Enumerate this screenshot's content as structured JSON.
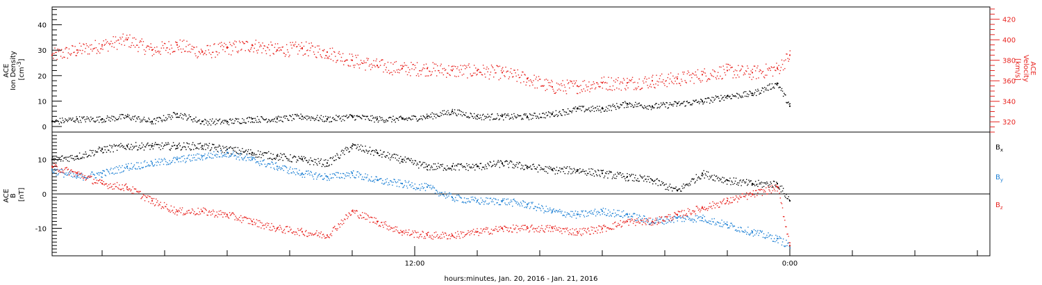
{
  "colors": {
    "black": "#000000",
    "red": "#e8231f",
    "blue": "#1b7fd4"
  },
  "xaxis": {
    "label": "hours:minutes, Jan. 20, 2016 - Jan. 21, 2016",
    "range_hours": [
      0,
      37.5
    ],
    "tick_labels": [
      {
        "hour": 14.5,
        "label": "12:00"
      },
      {
        "hour": 29.5,
        "label": "0:00"
      }
    ],
    "minor_tick_hours": [
      0,
      2,
      4.5,
      7,
      9.5,
      12,
      17,
      19.5,
      22,
      24.5,
      27,
      32,
      34.5,
      37
    ]
  },
  "chart_data": [
    {
      "type": "scatter",
      "panel": "top",
      "ylabel": "ACE\nIon Density\n[cm^-3]",
      "ylim": [
        0,
        47
      ],
      "yticks": [
        0,
        10,
        20,
        30,
        40
      ],
      "y2label": "ACE\nVelocity\n[km/s]",
      "y2lim": [
        310,
        432
      ],
      "y2ticks": [
        320,
        340,
        360,
        380,
        400,
        420
      ],
      "series": [
        {
          "name": "Ion Density",
          "color": "#000000",
          "axis": "left",
          "x": [
            0,
            1,
            2,
            3,
            4,
            5,
            6,
            7,
            8,
            9,
            10,
            11,
            12,
            13,
            14,
            15,
            16,
            17,
            18,
            19,
            20,
            21,
            22,
            23,
            24,
            25,
            26,
            27,
            28,
            29,
            29.5
          ],
          "y": [
            2,
            3,
            3,
            4,
            2,
            5,
            2,
            2,
            3,
            3,
            4,
            3,
            4,
            3,
            3,
            4,
            6,
            4,
            4,
            4,
            5,
            7,
            7,
            9,
            8,
            9,
            10,
            12,
            13,
            17,
            8
          ]
        },
        {
          "name": "Velocity",
          "color": "#e8231f",
          "axis": "right",
          "x": [
            0,
            1,
            2,
            3,
            4,
            5,
            6,
            7,
            8,
            9,
            10,
            11,
            12,
            13,
            14,
            15,
            16,
            17,
            18,
            19,
            20,
            21,
            22,
            23,
            24,
            25,
            26,
            27,
            28,
            29,
            29.5
          ],
          "y": [
            385,
            390,
            395,
            400,
            390,
            395,
            388,
            392,
            395,
            390,
            392,
            388,
            380,
            375,
            372,
            372,
            370,
            370,
            368,
            362,
            354,
            355,
            358,
            358,
            360,
            362,
            366,
            370,
            368,
            372,
            385
          ]
        }
      ]
    },
    {
      "type": "scatter",
      "panel": "bottom",
      "ylabel": "ACE\nB\n[nT]",
      "ylim": [
        -18,
        18
      ],
      "yticks": [
        -10,
        0,
        10
      ],
      "series": [
        {
          "name": "Bx",
          "color": "#000000",
          "x": [
            0,
            1,
            2,
            3,
            4,
            5,
            6,
            7,
            8,
            9,
            10,
            11,
            12,
            13,
            14,
            15,
            16,
            17,
            18,
            19,
            20,
            21,
            22,
            23,
            24,
            25,
            26,
            27,
            28,
            29,
            29.5
          ],
          "y": [
            10,
            11,
            13,
            14,
            14,
            14,
            14,
            13,
            12,
            11,
            10,
            9,
            14,
            12,
            10,
            8,
            8,
            8,
            9,
            8,
            7,
            7,
            6,
            5,
            4,
            1,
            6,
            4,
            3,
            3,
            -2
          ]
        },
        {
          "name": "By",
          "color": "#1b7fd4",
          "x": [
            0,
            1,
            2,
            3,
            4,
            5,
            6,
            7,
            8,
            9,
            10,
            11,
            12,
            13,
            14,
            15,
            16,
            17,
            18,
            19,
            20,
            21,
            22,
            23,
            24,
            25,
            26,
            27,
            28,
            29,
            29.5
          ],
          "y": [
            7,
            5,
            6,
            8,
            9,
            10,
            11,
            12,
            10,
            8,
            6,
            5,
            6,
            4,
            3,
            2,
            -1,
            -2,
            -2,
            -3,
            -5,
            -6,
            -5,
            -6,
            -8,
            -7,
            -7,
            -9,
            -11,
            -13,
            -15
          ]
        },
        {
          "name": "Bz",
          "color": "#e8231f",
          "x": [
            0,
            1,
            2,
            3,
            4,
            5,
            6,
            7,
            8,
            9,
            10,
            11,
            12,
            13,
            14,
            15,
            16,
            17,
            18,
            19,
            20,
            21,
            22,
            23,
            24,
            25,
            26,
            27,
            28,
            29,
            29.5
          ],
          "y": [
            8,
            6,
            3,
            2,
            -2,
            -5,
            -5,
            -6,
            -8,
            -10,
            -11,
            -12,
            -5,
            -8,
            -11,
            -12,
            -12,
            -11,
            -10,
            -10,
            -10,
            -11,
            -10,
            -8,
            -8,
            -6,
            -4,
            -2,
            0,
            2,
            -15
          ]
        }
      ],
      "legend": [
        {
          "label": "B",
          "sub": "x",
          "color": "#000000"
        },
        {
          "label": "B",
          "sub": "y",
          "color": "#1b7fd4"
        },
        {
          "label": "B",
          "sub": "z",
          "color": "#e8231f"
        }
      ]
    }
  ]
}
